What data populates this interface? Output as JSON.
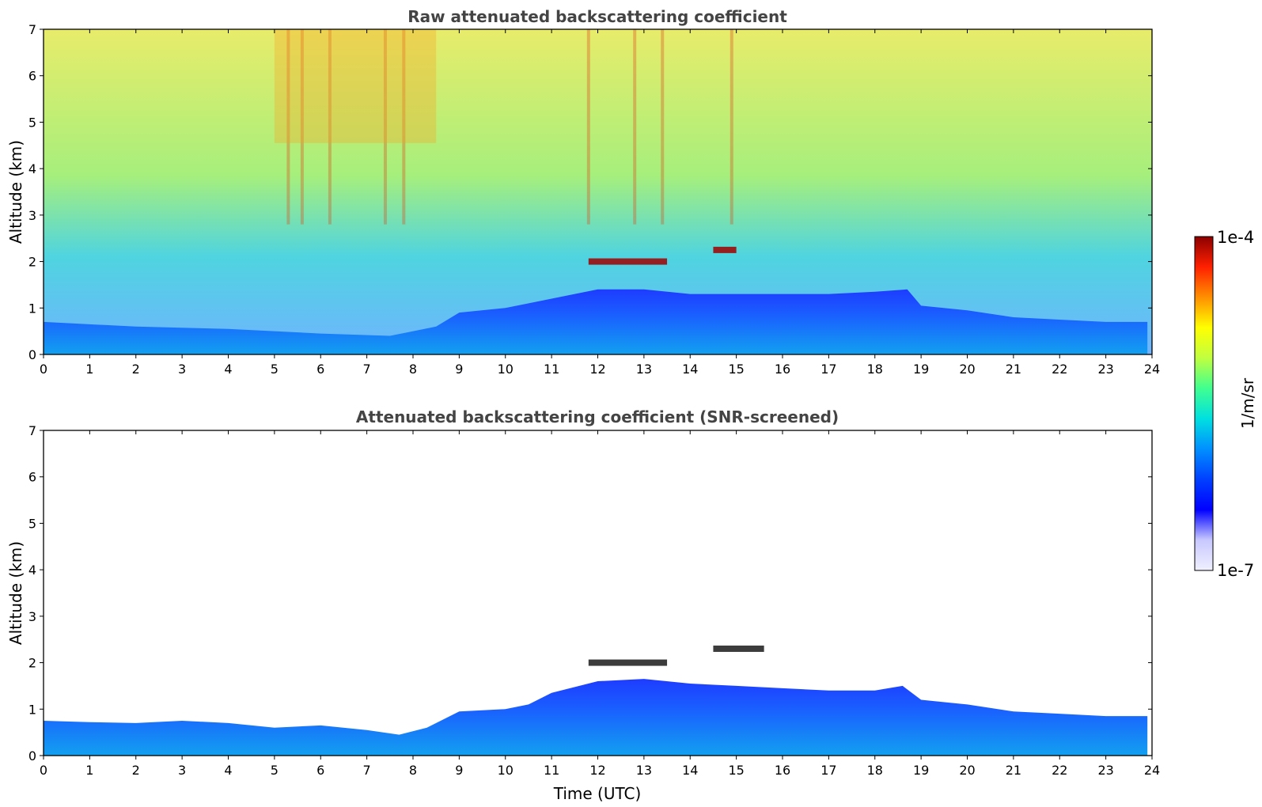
{
  "chart_data": [
    {
      "type": "heatmap",
      "title": "Raw attenuated backscattering coefficient",
      "xlabel": "",
      "ylabel": "Altitude (km)",
      "xlim": [
        0,
        24
      ],
      "ylim": [
        0,
        7
      ],
      "x_ticks": [
        "0",
        "1",
        "2",
        "3",
        "4",
        "5",
        "6",
        "7",
        "8",
        "9",
        "10",
        "11",
        "12",
        "13",
        "14",
        "15",
        "16",
        "17",
        "18",
        "19",
        "20",
        "21",
        "22",
        "23",
        "24"
      ],
      "y_ticks": [
        "0",
        "1",
        "2",
        "3",
        "4",
        "5",
        "6",
        "7"
      ],
      "boundary_layer_top_km": {
        "x": [
          0,
          2,
          4,
          6,
          7.5,
          8.5,
          9,
          10,
          11,
          12,
          13,
          14,
          15,
          16,
          17,
          18,
          18.7,
          19,
          20,
          21,
          22,
          23,
          23.9
        ],
        "y": [
          0.7,
          0.6,
          0.55,
          0.45,
          0.4,
          0.6,
          0.9,
          1.0,
          1.2,
          1.4,
          1.4,
          1.3,
          1.3,
          1.3,
          1.3,
          1.35,
          1.4,
          1.05,
          0.95,
          0.8,
          0.75,
          0.7,
          0.7
        ]
      },
      "cloud_layers": [
        {
          "x_start": 11.8,
          "x_end": 13.5,
          "altitude_km": 2.0
        },
        {
          "x_start": 14.5,
          "x_end": 15.0,
          "altitude_km": 2.25
        }
      ]
    },
    {
      "type": "heatmap",
      "title": "Attenuated backscattering coefficient (SNR-screened)",
      "xlabel": "Time (UTC)",
      "ylabel": "Altitude (km)",
      "xlim": [
        0,
        24
      ],
      "ylim": [
        0,
        7
      ],
      "x_ticks": [
        "0",
        "1",
        "2",
        "3",
        "4",
        "5",
        "6",
        "7",
        "8",
        "9",
        "10",
        "11",
        "12",
        "13",
        "14",
        "15",
        "16",
        "17",
        "18",
        "19",
        "20",
        "21",
        "22",
        "23",
        "24"
      ],
      "y_ticks": [
        "0",
        "1",
        "2",
        "3",
        "4",
        "5",
        "6",
        "7"
      ],
      "boundary_layer_top_km": {
        "x": [
          0,
          1,
          2,
          3,
          4,
          5,
          6,
          7,
          7.7,
          8.3,
          9,
          10,
          10.5,
          11,
          12,
          13,
          14,
          15,
          16,
          17,
          18,
          18.6,
          19,
          20,
          21,
          22,
          23,
          23.9
        ],
        "y": [
          0.75,
          0.72,
          0.7,
          0.75,
          0.7,
          0.6,
          0.65,
          0.55,
          0.45,
          0.6,
          0.95,
          1.0,
          1.1,
          1.35,
          1.6,
          1.65,
          1.55,
          1.5,
          1.45,
          1.4,
          1.4,
          1.5,
          1.2,
          1.1,
          0.95,
          0.9,
          0.85,
          0.85
        ]
      },
      "cloud_layers": [
        {
          "x_start": 11.8,
          "x_end": 13.5,
          "altitude_km": 2.0
        },
        {
          "x_start": 14.5,
          "x_end": 15.6,
          "altitude_km": 2.3
        }
      ]
    }
  ],
  "colorbar": {
    "label": "1/m/sr",
    "max_label": "1e-4",
    "min_label": "1e-7",
    "colors": [
      "#f0f0ff",
      "#c8c8ff",
      "#0000ff",
      "#0040ff",
      "#0090ff",
      "#00e0e0",
      "#40ff90",
      "#c0ff40",
      "#ffff00",
      "#ff9000",
      "#ff2000",
      "#8b0000"
    ]
  }
}
